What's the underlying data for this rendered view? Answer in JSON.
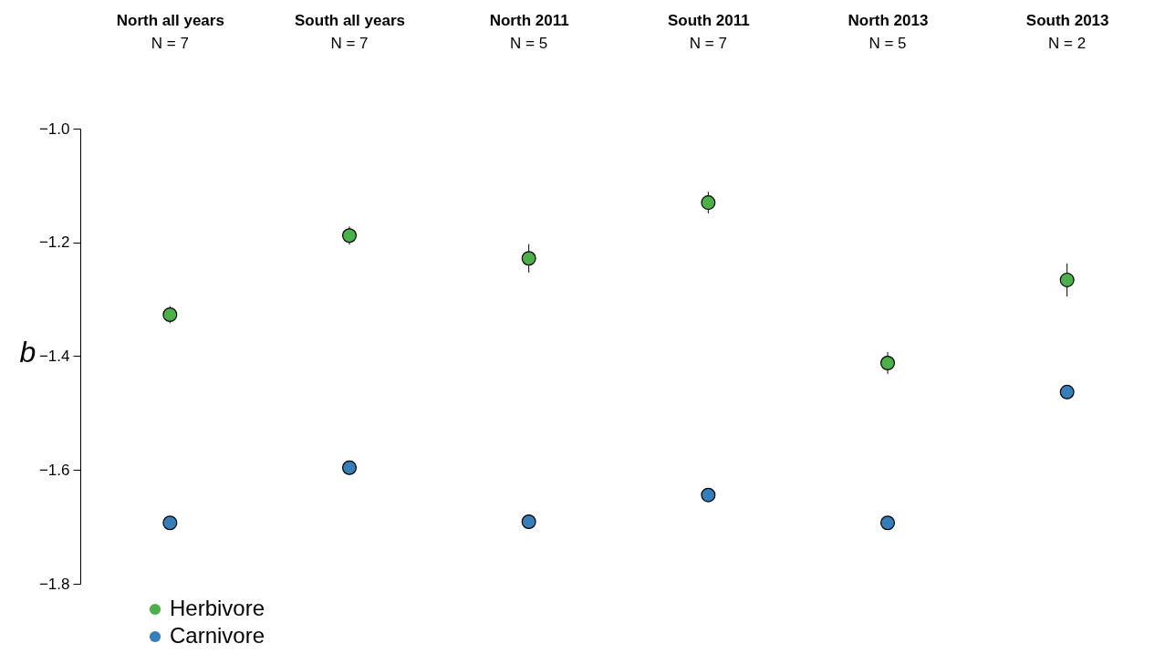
{
  "chart_data": {
    "type": "scatter",
    "ylabel": "b",
    "categories": [
      "North all years",
      "South all years",
      "North 2011",
      "South 2011",
      "North 2013",
      "South 2013"
    ],
    "annotations": [
      "N =  7",
      "N =  7",
      "N =  5",
      "N =  7",
      "N =  5",
      "N =  2"
    ],
    "ylim": [
      -1.8,
      -1.0
    ],
    "yticks": [
      {
        "value": -1.8,
        "label": "−1.8"
      },
      {
        "value": -1.6,
        "label": "−1.6"
      },
      {
        "value": -1.4,
        "label": "−1.4"
      },
      {
        "value": -1.2,
        "label": "−1.2"
      },
      {
        "value": -1.0,
        "label": "−1.0"
      }
    ],
    "marker": "circle",
    "legend": "bottom left",
    "series": [
      {
        "name": "Herbivore",
        "color": "#4daf4a",
        "values": [
          -1.327,
          -1.188,
          -1.228,
          -1.13,
          -1.412,
          -1.266
        ],
        "errors": [
          0.015,
          0.016,
          0.025,
          0.019,
          0.019,
          0.029
        ]
      },
      {
        "name": "Carnivore",
        "color": "#377eb8",
        "values": [
          -1.693,
          -1.596,
          -1.691,
          -1.644,
          -1.693,
          -1.463
        ],
        "errors": [
          null,
          null,
          0.012,
          null,
          null,
          0.012
        ]
      }
    ]
  }
}
